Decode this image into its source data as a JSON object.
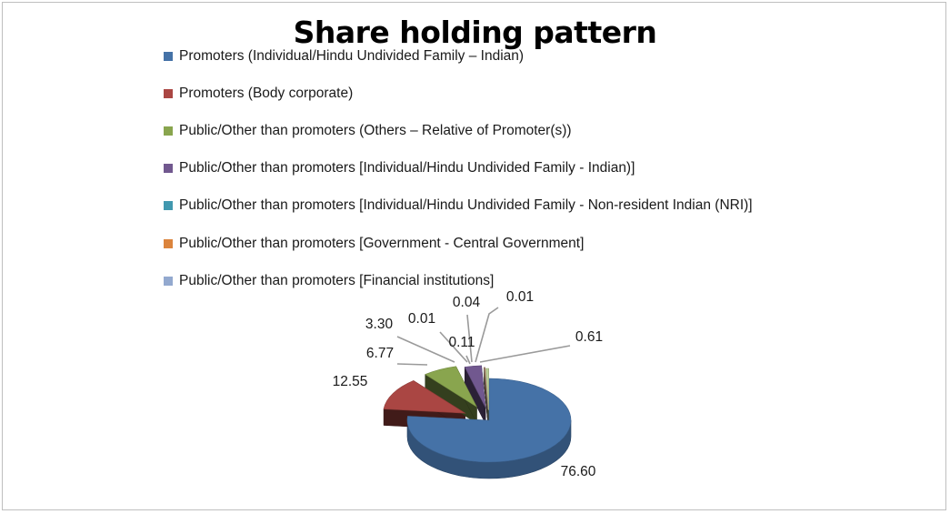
{
  "chart_data": {
    "type": "pie",
    "title": "Share holding pattern",
    "legend_position": "top",
    "three_d": true,
    "series": [
      {
        "name": "Promoters (Individual/Hindu Undivided Family – Indian)",
        "value": 76.6,
        "label": "76.60",
        "color": "#4572A7"
      },
      {
        "name": "Promoters (Body corporate)",
        "value": 12.55,
        "label": "12.55",
        "color": "#AA4643"
      },
      {
        "name": "Public/Other than promoters (Others – Relative of Promoter(s))",
        "value": 6.77,
        "label": "6.77",
        "color": "#89A54E"
      },
      {
        "name": "Public/Other than promoters [Individual/Hindu Undivided Family  - Indian)]",
        "value": 3.3,
        "label": "3.30",
        "color": "#71588F"
      },
      {
        "name": "Public/Other than promoters [Individual/Hindu Undivided Family  - Non-resident Indian (NRI)]",
        "value": 0.01,
        "label": "0.01",
        "color": "#4198AF"
      },
      {
        "name": "Public/Other than promoters [Government - Central Government]",
        "value": 0.11,
        "label": "0.11",
        "color": "#DB843D"
      },
      {
        "name": "Public/Other than promoters [Financial institutions]",
        "value": 0.04,
        "label": "0.04",
        "color": "#93A9CF"
      },
      {
        "name": "",
        "value": 0.01,
        "label": "0.01",
        "color": "#D19392"
      },
      {
        "name": "",
        "value": 0.61,
        "label": "0.61",
        "color": "#B9CD96"
      }
    ]
  }
}
